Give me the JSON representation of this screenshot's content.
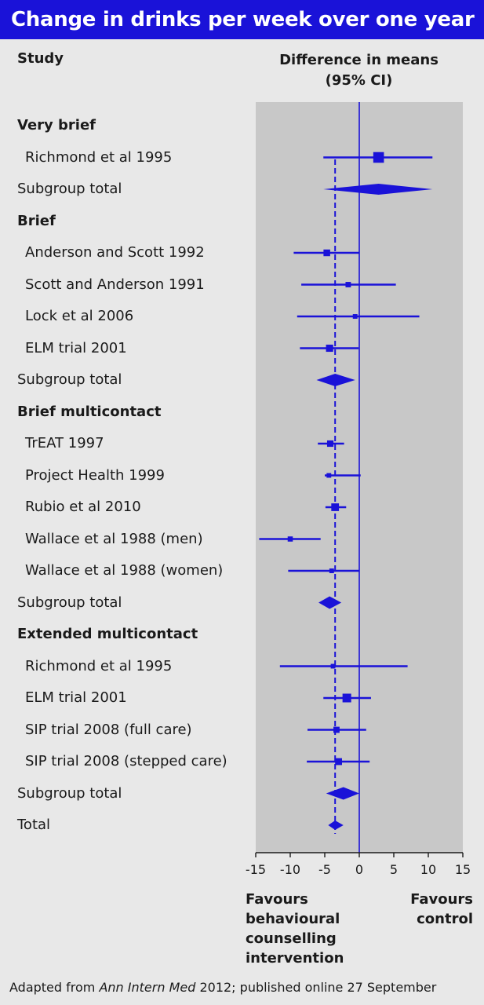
{
  "title": "Change in drinks per week over one year",
  "header": {
    "study_label": "Study",
    "effect_label_line1": "Difference in means",
    "effect_label_line2": "(95% CI)"
  },
  "footer": {
    "favours_left": [
      "Favours",
      "behavioural",
      "counselling",
      "intervention"
    ],
    "favours_right": [
      "Favours",
      "control"
    ],
    "source_prefix": "Adapted from ",
    "source_journal": "Ann Intern Med",
    "source_suffix": " 2012; published online 27 September"
  },
  "chart_data": {
    "type": "forest",
    "xlim": [
      -15,
      15
    ],
    "x_ticks": [
      -15,
      -10,
      -5,
      0,
      5,
      10,
      15
    ],
    "x_tick_labels": [
      "-15",
      "-10",
      "-5",
      "0",
      "5",
      "10",
      "15"
    ],
    "null_line": 0,
    "overall_line": -3.5,
    "rows": [
      {
        "label": "Very brief",
        "kind": "group"
      },
      {
        "label": "Richmond et al 1995",
        "kind": "study",
        "est": 2.8,
        "lo": -5.2,
        "hi": 10.6,
        "weight": 3
      },
      {
        "label": "Subgroup total",
        "kind": "subtotal",
        "est": 2.8,
        "lo": -5.2,
        "hi": 10.6
      },
      {
        "label": "Brief",
        "kind": "group"
      },
      {
        "label": "Anderson and Scott 1992",
        "kind": "study",
        "est": -4.7,
        "lo": -9.5,
        "hi": 0.0,
        "weight": 1.4
      },
      {
        "label": "Scott and Anderson 1991",
        "kind": "study",
        "est": -1.6,
        "lo": -8.4,
        "hi": 5.3,
        "weight": 0.9
      },
      {
        "label": "Lock et al 2006",
        "kind": "study",
        "est": -0.6,
        "lo": -9.0,
        "hi": 8.7,
        "weight": 0.6
      },
      {
        "label": "ELM trial 2001",
        "kind": "study",
        "est": -4.3,
        "lo": -8.6,
        "hi": -0.1,
        "weight": 1.6
      },
      {
        "label": "Subgroup total",
        "kind": "subtotal",
        "est": -3.5,
        "lo": -6.2,
        "hi": -0.6
      },
      {
        "label": "Brief multicontact",
        "kind": "group"
      },
      {
        "label": "TrEAT 1997",
        "kind": "study",
        "est": -4.2,
        "lo": -6.0,
        "hi": -2.2,
        "weight": 1.3
      },
      {
        "label": "Project Health 1999",
        "kind": "study",
        "est": -4.4,
        "lo": -5.0,
        "hi": 0.2,
        "weight": 0.6
      },
      {
        "label": "Rubio et al 2010",
        "kind": "study",
        "est": -3.5,
        "lo": -4.9,
        "hi": -1.9,
        "weight": 1.8
      },
      {
        "label": "Wallace et al 1988 (men)",
        "kind": "study",
        "est": -10.0,
        "lo": -14.5,
        "hi": -5.6,
        "weight": 0.8
      },
      {
        "label": "Wallace et al 1988 (women)",
        "kind": "study",
        "est": -4.0,
        "lo": -10.3,
        "hi": 0.0,
        "weight": 0.6
      },
      {
        "label": "Subgroup total",
        "kind": "subtotal",
        "est": -4.3,
        "lo": -5.9,
        "hi": -2.6
      },
      {
        "label": "Extended multicontact",
        "kind": "group"
      },
      {
        "label": "Richmond et al 1995",
        "kind": "study",
        "est": -3.8,
        "lo": -11.5,
        "hi": 7.0,
        "weight": 0.6
      },
      {
        "label": "ELM trial 2001",
        "kind": "study",
        "est": -1.8,
        "lo": -5.2,
        "hi": 1.7,
        "weight": 2.2
      },
      {
        "label": "SIP trial 2008 (full care)",
        "kind": "study",
        "est": -3.3,
        "lo": -7.5,
        "hi": 1.0,
        "weight": 1.2
      },
      {
        "label": "SIP trial 2008 (stepped care)",
        "kind": "study",
        "est": -3.0,
        "lo": -7.6,
        "hi": 1.5,
        "weight": 1.5
      },
      {
        "label": "Subgroup total",
        "kind": "subtotal",
        "est": -2.3,
        "lo": -4.8,
        "hi": 0.0
      },
      {
        "label": "Total",
        "kind": "total",
        "est": -3.5,
        "lo": -4.5,
        "hi": -2.3
      }
    ]
  },
  "colors": {
    "accent": "#1a12d8",
    "plot_background": "#c8c8c8",
    "page_background": "#e8e8e8"
  }
}
